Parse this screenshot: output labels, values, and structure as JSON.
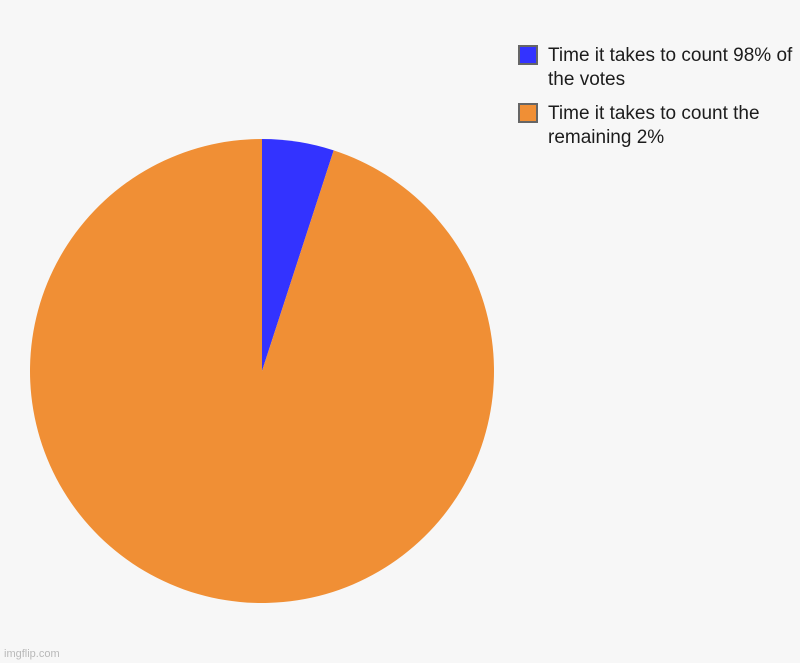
{
  "chart_data": {
    "type": "pie",
    "slices": [
      {
        "label": "Time it takes to count 98% of the votes",
        "value": 5,
        "color": "#3333ff"
      },
      {
        "label": "Time it takes to count the remaining 2%",
        "value": 95,
        "color": "#f08f35"
      }
    ],
    "legend_position": "top-right"
  },
  "watermark": "imgflip.com"
}
